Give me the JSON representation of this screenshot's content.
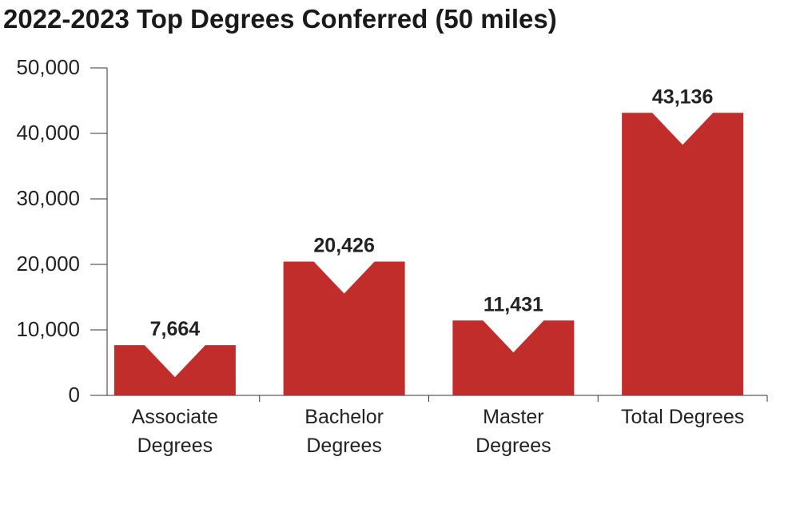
{
  "chart_data": {
    "type": "bar",
    "title": "2022-2023 Top Degrees Conferred (50 miles)",
    "categories": [
      "Associate Degrees",
      "Bachelor Degrees",
      "Master Degrees",
      "Total Degrees"
    ],
    "values": [
      7664,
      20426,
      11431,
      43136
    ],
    "value_labels": [
      "7,664",
      "20,426",
      "11,431",
      "43,136"
    ],
    "color": "#c12d2a",
    "ylim": [
      0,
      50000
    ],
    "yticks": [
      0,
      {
        "value": 10000,
        "label": "10,000"
      },
      {
        "value": 20000,
        "label": "20,000"
      },
      {
        "value": 30000,
        "label": "30,000"
      },
      {
        "value": 40000,
        "label": "40,000"
      },
      {
        "value": 50000,
        "label": "50,000"
      }
    ]
  }
}
